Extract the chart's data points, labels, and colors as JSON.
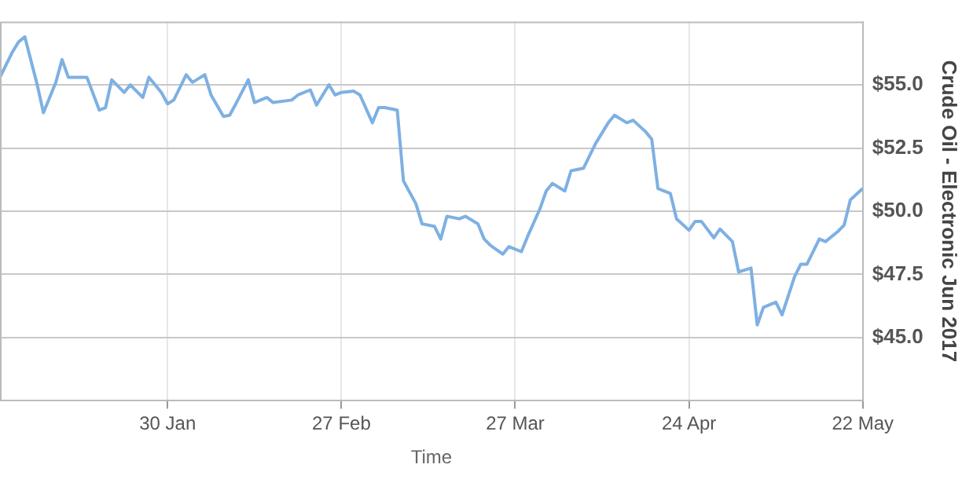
{
  "chart_data": {
    "type": "line",
    "xlabel": "Time",
    "ylabel": "Crude Oil - Electronic Jun 2017",
    "x": [
      "2017-01-03",
      "2017-01-05",
      "2017-01-06",
      "2017-01-07",
      "2017-01-09",
      "2017-01-10",
      "2017-01-12",
      "2017-01-13",
      "2017-01-14",
      "2017-01-17",
      "2017-01-19",
      "2017-01-20",
      "2017-01-21",
      "2017-01-23",
      "2017-01-24",
      "2017-01-26",
      "2017-01-27",
      "2017-01-29",
      "2017-01-30",
      "2017-01-31",
      "2017-02-02",
      "2017-02-03",
      "2017-02-05",
      "2017-02-06",
      "2017-02-08",
      "2017-02-09",
      "2017-02-10",
      "2017-02-12",
      "2017-02-13",
      "2017-02-15",
      "2017-02-16",
      "2017-02-19",
      "2017-02-20",
      "2017-02-22",
      "2017-02-23",
      "2017-02-25",
      "2017-02-26",
      "2017-02-27",
      "2017-03-01",
      "2017-03-02",
      "2017-03-04",
      "2017-03-05",
      "2017-03-06",
      "2017-03-08",
      "2017-03-09",
      "2017-03-11",
      "2017-03-12",
      "2017-03-14",
      "2017-03-15",
      "2017-03-16",
      "2017-03-18",
      "2017-03-19",
      "2017-03-21",
      "2017-03-22",
      "2017-03-23",
      "2017-03-25",
      "2017-03-26",
      "2017-03-28",
      "2017-03-29",
      "2017-03-31",
      "2017-04-01",
      "2017-04-02",
      "2017-04-04",
      "2017-04-05",
      "2017-04-07",
      "2017-04-08",
      "2017-04-09",
      "2017-04-11",
      "2017-04-12",
      "2017-04-14",
      "2017-04-15",
      "2017-04-17",
      "2017-04-18",
      "2017-04-19",
      "2017-04-21",
      "2017-04-22",
      "2017-04-24",
      "2017-04-25",
      "2017-04-26",
      "2017-04-28",
      "2017-04-29",
      "2017-05-01",
      "2017-05-02",
      "2017-05-04",
      "2017-05-05",
      "2017-05-06",
      "2017-05-08",
      "2017-05-09",
      "2017-05-11",
      "2017-05-12",
      "2017-05-13",
      "2017-05-15",
      "2017-05-16",
      "2017-05-18",
      "2017-05-19",
      "2017-05-20",
      "2017-05-22"
    ],
    "series": [
      {
        "color": "#7eb0e2",
        "values": [
          55.3,
          56.3,
          56.7,
          56.9,
          55.0,
          53.9,
          55.1,
          56.0,
          55.3,
          55.3,
          54.0,
          54.1,
          55.2,
          54.7,
          55.0,
          54.5,
          55.3,
          54.7,
          54.25,
          54.4,
          55.4,
          55.1,
          55.4,
          54.6,
          53.75,
          53.8,
          54.25,
          55.2,
          54.3,
          54.5,
          54.3,
          54.4,
          54.6,
          54.8,
          54.2,
          55.0,
          54.6,
          54.7,
          54.75,
          54.6,
          53.5,
          54.1,
          54.1,
          54.0,
          51.2,
          50.3,
          49.5,
          49.4,
          48.9,
          49.8,
          49.7,
          49.8,
          49.5,
          48.9,
          48.65,
          48.3,
          48.6,
          48.4,
          49.0,
          50.1,
          50.8,
          51.1,
          50.8,
          51.6,
          51.7,
          52.2,
          52.7,
          53.5,
          53.8,
          53.5,
          53.6,
          53.15,
          52.85,
          50.9,
          50.7,
          49.7,
          49.25,
          49.6,
          49.6,
          48.95,
          49.3,
          48.8,
          47.6,
          47.75,
          45.5,
          46.2,
          46.4,
          45.9,
          47.4,
          47.9,
          47.9,
          48.9,
          48.8,
          49.2,
          49.45,
          50.45,
          50.9
        ]
      }
    ],
    "xlim": [
      "2017-01-03",
      "2017-05-22"
    ],
    "xticks": [
      {
        "value": "2017-01-30",
        "label": "30 Jan"
      },
      {
        "value": "2017-02-27",
        "label": "27 Feb"
      },
      {
        "value": "2017-03-27",
        "label": "27 Mar"
      },
      {
        "value": "2017-04-24",
        "label": "24 Apr"
      },
      {
        "value": "2017-05-22",
        "label": "22 May"
      }
    ],
    "ylim": [
      42.5,
      57.5
    ],
    "yticks": [
      {
        "value": 45,
        "label": "$45.0"
      },
      {
        "value": 47.5,
        "label": "$47.5"
      },
      {
        "value": 50,
        "label": "$50.0"
      },
      {
        "value": 52.5,
        "label": "$52.5"
      },
      {
        "value": 55,
        "label": "$55.0"
      }
    ],
    "grid": true,
    "legend": false,
    "marker": "none",
    "line_style": "solid"
  }
}
